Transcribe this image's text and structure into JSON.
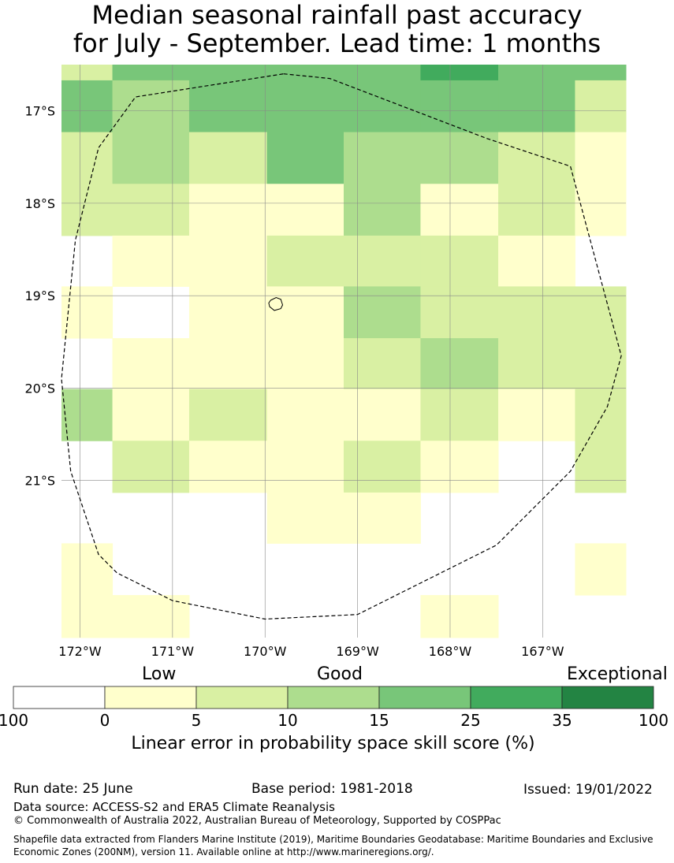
{
  "title": {
    "line1": "Median seasonal rainfall past accuracy",
    "line2": "for July - September. Lead time: 1 months"
  },
  "map": {
    "lat_labels": [
      "17°S",
      "18°S",
      "19°S",
      "20°S",
      "21°S"
    ],
    "lon_labels": [
      "172°W",
      "171°W",
      "170°W",
      "169°W",
      "168°W",
      "167°W"
    ],
    "lon_extent": [
      -172.2,
      -166.1
    ],
    "lat_extent": [
      -16.5,
      -22.7
    ],
    "lat_ticks": [
      -17,
      -18,
      -19,
      -20,
      -21
    ],
    "lon_ticks": [
      -172,
      -171,
      -170,
      -169,
      -168,
      -167
    ],
    "eez_boundary": [
      [
        -169.8,
        -16.6
      ],
      [
        -169.3,
        -16.65
      ],
      [
        -167.6,
        -17.3
      ],
      [
        -166.7,
        -17.6
      ],
      [
        -166.15,
        -19.65
      ],
      [
        -166.3,
        -20.2
      ],
      [
        -166.7,
        -20.9
      ],
      [
        -167.5,
        -21.7
      ],
      [
        -168.3,
        -22.1
      ],
      [
        -169.0,
        -22.45
      ],
      [
        -170.0,
        -22.5
      ],
      [
        -171.0,
        -22.3
      ],
      [
        -171.6,
        -22.0
      ],
      [
        -171.8,
        -21.8
      ],
      [
        -172.1,
        -20.9
      ],
      [
        -172.2,
        -19.9
      ],
      [
        -172.05,
        -18.4
      ],
      [
        -171.8,
        -17.4
      ],
      [
        -171.4,
        -16.85
      ],
      [
        -169.8,
        -16.6
      ]
    ],
    "island": [
      [
        -169.94,
        -19.05
      ],
      [
        -169.88,
        -19.02
      ],
      [
        -169.83,
        -19.04
      ],
      [
        -169.81,
        -19.1
      ],
      [
        -169.83,
        -19.14
      ],
      [
        -169.9,
        -19.16
      ],
      [
        -169.95,
        -19.12
      ],
      [
        -169.96,
        -19.08
      ]
    ],
    "grid_cells": [
      {
        "lon": -172.2,
        "lat": -16.5,
        "category": 2
      },
      {
        "lon": -171.65,
        "lat": -16.5,
        "category": 4
      },
      {
        "lon": -170.82,
        "lat": -16.5,
        "category": 4
      },
      {
        "lon": -169.98,
        "lat": -16.5,
        "category": 4
      },
      {
        "lon": -169.15,
        "lat": -16.5,
        "category": 4
      },
      {
        "lon": -168.32,
        "lat": -16.5,
        "category": 5
      },
      {
        "lon": -167.48,
        "lat": -16.5,
        "category": 4
      },
      {
        "lon": -166.65,
        "lat": -16.5,
        "category": 4
      },
      {
        "lon": -172.2,
        "lat": -16.67,
        "category": 4
      },
      {
        "lon": -171.65,
        "lat": -16.67,
        "category": 3
      },
      {
        "lon": -170.82,
        "lat": -16.67,
        "category": 4
      },
      {
        "lon": -169.98,
        "lat": -16.67,
        "category": 4
      },
      {
        "lon": -169.15,
        "lat": -16.67,
        "category": 4
      },
      {
        "lon": -168.32,
        "lat": -16.67,
        "category": 4
      },
      {
        "lon": -167.48,
        "lat": -16.67,
        "category": 4
      },
      {
        "lon": -166.65,
        "lat": -16.67,
        "category": 2
      },
      {
        "lon": -172.2,
        "lat": -17.23,
        "category": 2
      },
      {
        "lon": -171.65,
        "lat": -17.23,
        "category": 3
      },
      {
        "lon": -170.82,
        "lat": -17.23,
        "category": 2
      },
      {
        "lon": -169.98,
        "lat": -17.23,
        "category": 4
      },
      {
        "lon": -169.15,
        "lat": -17.23,
        "category": 3
      },
      {
        "lon": -168.32,
        "lat": -17.23,
        "category": 3
      },
      {
        "lon": -167.48,
        "lat": -17.23,
        "category": 2
      },
      {
        "lon": -166.65,
        "lat": -17.23,
        "category": 1
      },
      {
        "lon": -172.2,
        "lat": -17.79,
        "category": 2
      },
      {
        "lon": -171.65,
        "lat": -17.79,
        "category": 2
      },
      {
        "lon": -170.82,
        "lat": -17.79,
        "category": 1
      },
      {
        "lon": -169.98,
        "lat": -17.79,
        "category": 1
      },
      {
        "lon": -169.15,
        "lat": -17.79,
        "category": 3
      },
      {
        "lon": -168.32,
        "lat": -17.79,
        "category": 1
      },
      {
        "lon": -167.48,
        "lat": -17.79,
        "category": 2
      },
      {
        "lon": -166.65,
        "lat": -17.79,
        "category": 1
      },
      {
        "lon": -171.65,
        "lat": -18.35,
        "category": 1
      },
      {
        "lon": -170.82,
        "lat": -18.35,
        "category": 1
      },
      {
        "lon": -169.98,
        "lat": -18.35,
        "category": 2
      },
      {
        "lon": -169.15,
        "lat": -18.35,
        "category": 2
      },
      {
        "lon": -168.32,
        "lat": -18.35,
        "category": 2
      },
      {
        "lon": -167.48,
        "lat": -18.35,
        "category": 1
      },
      {
        "lon": -172.2,
        "lat": -18.9,
        "category": 1
      },
      {
        "lon": -170.82,
        "lat": -18.9,
        "category": 1
      },
      {
        "lon": -169.98,
        "lat": -18.9,
        "category": 1
      },
      {
        "lon": -169.15,
        "lat": -18.9,
        "category": 3
      },
      {
        "lon": -168.32,
        "lat": -18.9,
        "category": 2
      },
      {
        "lon": -167.48,
        "lat": -18.9,
        "category": 2
      },
      {
        "lon": -166.65,
        "lat": -18.9,
        "category": 2
      },
      {
        "lon": -171.65,
        "lat": -19.46,
        "category": 1
      },
      {
        "lon": -170.82,
        "lat": -19.46,
        "category": 1
      },
      {
        "lon": -169.98,
        "lat": -19.46,
        "category": 1
      },
      {
        "lon": -169.15,
        "lat": -19.46,
        "category": 2
      },
      {
        "lon": -168.32,
        "lat": -19.46,
        "category": 3
      },
      {
        "lon": -167.48,
        "lat": -19.46,
        "category": 2
      },
      {
        "lon": -166.65,
        "lat": -19.46,
        "category": 2
      },
      {
        "lon": -172.2,
        "lat": -20.01,
        "category": 3
      },
      {
        "lon": -171.65,
        "lat": -20.01,
        "category": 1
      },
      {
        "lon": -170.82,
        "lat": -20.01,
        "category": 2
      },
      {
        "lon": -169.98,
        "lat": -20.01,
        "category": 1
      },
      {
        "lon": -169.15,
        "lat": -20.01,
        "category": 1
      },
      {
        "lon": -168.32,
        "lat": -20.01,
        "category": 2
      },
      {
        "lon": -167.48,
        "lat": -20.01,
        "category": 1
      },
      {
        "lon": -166.65,
        "lat": -20.01,
        "category": 2
      },
      {
        "lon": -171.65,
        "lat": -20.57,
        "category": 2
      },
      {
        "lon": -170.82,
        "lat": -20.57,
        "category": 1
      },
      {
        "lon": -169.98,
        "lat": -20.57,
        "category": 1
      },
      {
        "lon": -169.15,
        "lat": -20.57,
        "category": 2
      },
      {
        "lon": -168.32,
        "lat": -20.57,
        "category": 1
      },
      {
        "lon": -166.65,
        "lat": -20.57,
        "category": 2
      },
      {
        "lon": -169.98,
        "lat": -21.13,
        "category": 1
      },
      {
        "lon": -169.15,
        "lat": -21.13,
        "category": 1
      },
      {
        "lon": -172.2,
        "lat": -21.68,
        "category": 1
      },
      {
        "lon": -166.65,
        "lat": -21.68,
        "category": 1
      },
      {
        "lon": -172.2,
        "lat": -22.24,
        "category": 1
      },
      {
        "lon": -171.65,
        "lat": -22.24,
        "category": 1
      },
      {
        "lon": -168.32,
        "lat": -22.24,
        "category": 1
      }
    ]
  },
  "legend": {
    "words": [
      "Low",
      "Good",
      "Exceptional"
    ],
    "tick_labels": [
      "100",
      "0",
      "5",
      "10",
      "15",
      "25",
      "35",
      "100"
    ],
    "colors": [
      "#ffffff",
      "#ffffcc",
      "#d9f0a3",
      "#addd8e",
      "#78c679",
      "#41ab5d",
      "#238443"
    ],
    "axis_label": "Linear error in probability space skill score (%)"
  },
  "footer": {
    "run_date": "Run date: 25 June",
    "base_period": "Base period: 1981-2018",
    "issued": "Issued: 19/01/2022",
    "data_source": "Data source: ACCESS-S2 and ERA5 Climate Reanalysis",
    "copyright": "© Commonwealth of Australia 2022, Australian Bureau of Meteorology, Supported by COSPPac",
    "shapefile_line1": "Shapefile data extracted from Flanders Marine Institute (2019), Maritime Boundaries Geodatabase: Maritime Boundaries and Exclusive",
    "shapefile_line2": "Economic Zones (200NM), version 11. Available online at http://www.marineregions.org/."
  }
}
